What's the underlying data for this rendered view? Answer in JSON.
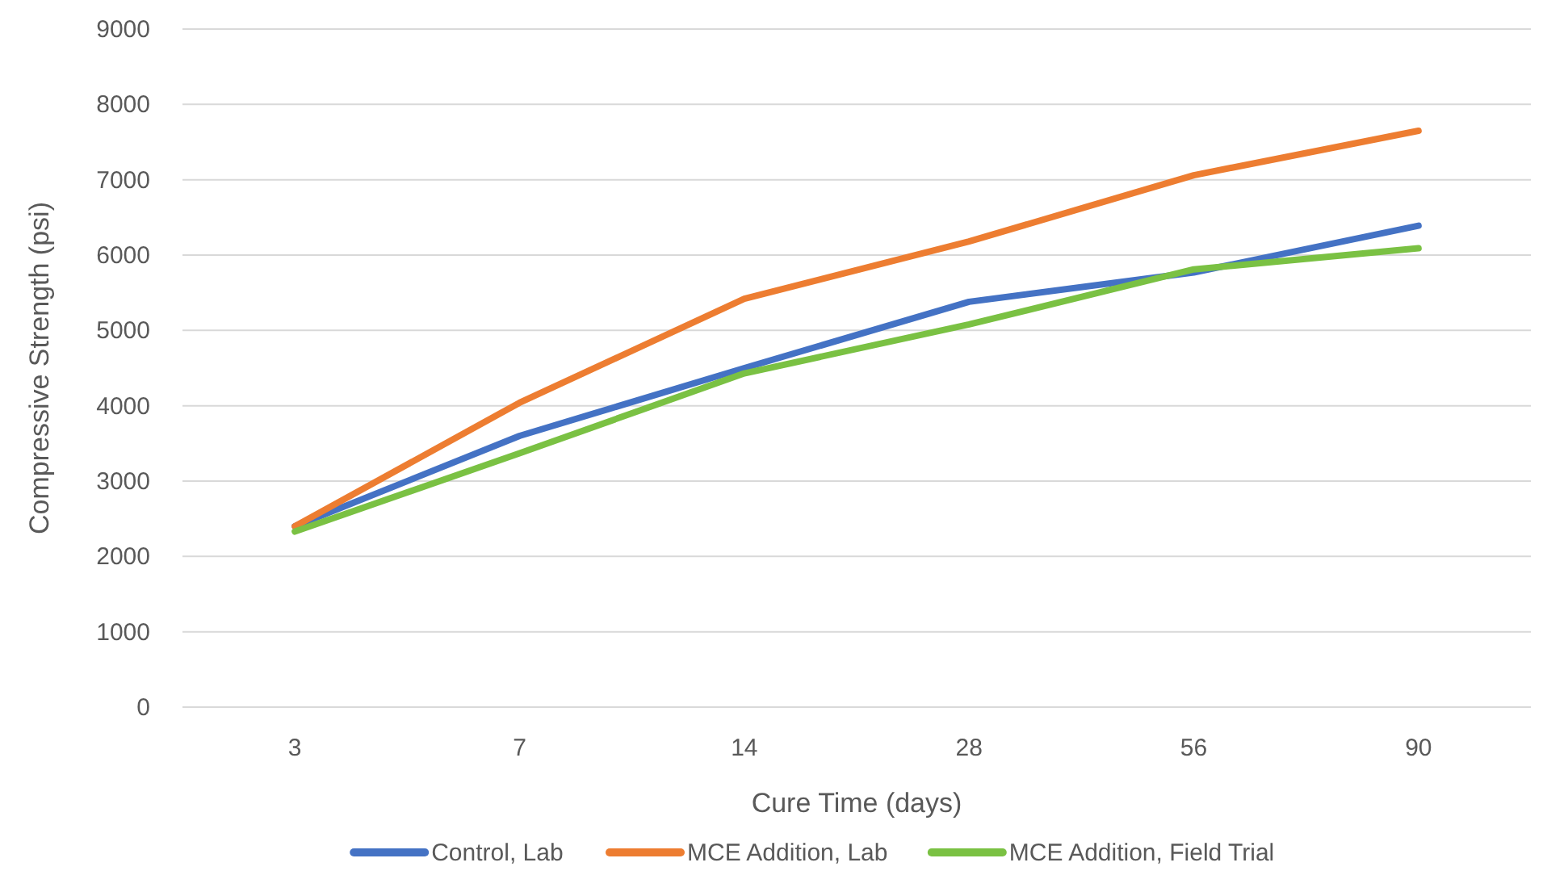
{
  "chart_data": {
    "type": "line",
    "xlabel": "Cure Time (days)",
    "ylabel": "Compressive Strength (psi)",
    "categories": [
      "3",
      "7",
      "14",
      "28",
      "56",
      "90"
    ],
    "series": [
      {
        "name": "Control, Lab",
        "color": "#4472c4",
        "values": [
          2400,
          3600,
          4500,
          5380,
          5770,
          6390
        ]
      },
      {
        "name": "MCE Addition, Lab",
        "color": "#ed7d31",
        "values": [
          2400,
          4040,
          5420,
          6180,
          7060,
          7650
        ]
      },
      {
        "name": "MCE Addition, Field Trial",
        "color": "#7ac143",
        "values": [
          2330,
          3370,
          4430,
          5080,
          5810,
          6090
        ]
      }
    ],
    "ylim": [
      0,
      9000
    ],
    "yticks": [
      0,
      1000,
      2000,
      3000,
      4000,
      5000,
      6000,
      7000,
      8000,
      9000
    ],
    "grid": "y",
    "legend": "bottom",
    "marker": "none",
    "line_style": "solid"
  }
}
